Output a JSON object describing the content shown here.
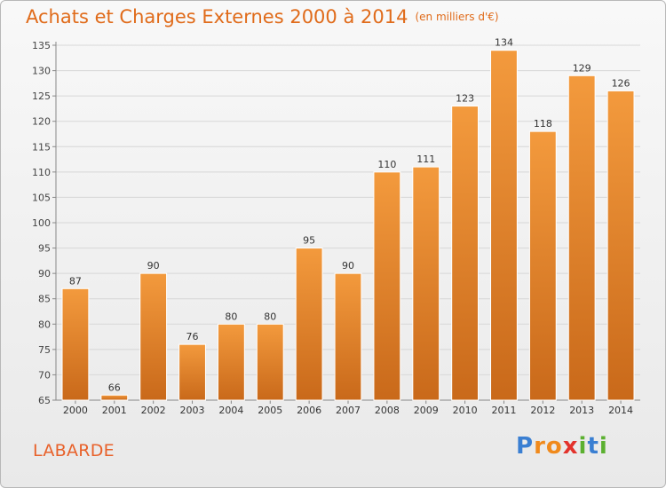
{
  "title": "Achats et Charges Externes 2000 à 2014",
  "subtitle": "(en milliers d'€)",
  "commune": "LABARDE",
  "logo": {
    "letters": [
      "P",
      "r",
      "o",
      "x",
      "i",
      "t",
      "i"
    ],
    "colors": [
      "#3a7fd2",
      "#f08a1c",
      "#f08a1c",
      "#e3332c",
      "#5bb030",
      "#3a7fd2",
      "#5bb030"
    ]
  },
  "colors": {
    "bar": "#f39a3d",
    "bar_dark": "#c9691a",
    "title": "#e06b1a",
    "grid": "#d7d7d7"
  },
  "chart_data": {
    "type": "bar",
    "categories": [
      "2000",
      "2001",
      "2002",
      "2003",
      "2004",
      "2005",
      "2006",
      "2007",
      "2008",
      "2009",
      "2010",
      "2011",
      "2012",
      "2013",
      "2014"
    ],
    "values": [
      87,
      66,
      90,
      76,
      80,
      80,
      95,
      90,
      110,
      111,
      123,
      134,
      118,
      129,
      126
    ],
    "ylim": [
      65,
      135
    ],
    "yticks": [
      65,
      70,
      75,
      80,
      85,
      90,
      95,
      100,
      105,
      110,
      115,
      120,
      125,
      130,
      135
    ],
    "grid": true,
    "xlabel": "",
    "ylabel": ""
  }
}
